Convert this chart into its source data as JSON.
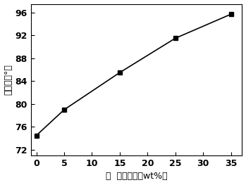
{
  "x": [
    0,
    5,
    15,
    25,
    35
  ],
  "y": [
    74.5,
    79.0,
    85.5,
    91.5,
    95.7
  ],
  "xlabel": "蘆  麻油含量（wt%）",
  "ylabel": "接触角（°）",
  "xlim": [
    -1,
    37
  ],
  "ylim": [
    71,
    97.5
  ],
  "xticks": [
    0,
    5,
    10,
    15,
    20,
    25,
    30,
    35
  ],
  "yticks": [
    72,
    76,
    80,
    84,
    88,
    92,
    96
  ],
  "line_color": "#000000",
  "marker": "s",
  "marker_color": "#000000",
  "marker_size": 5,
  "linewidth": 1.2
}
